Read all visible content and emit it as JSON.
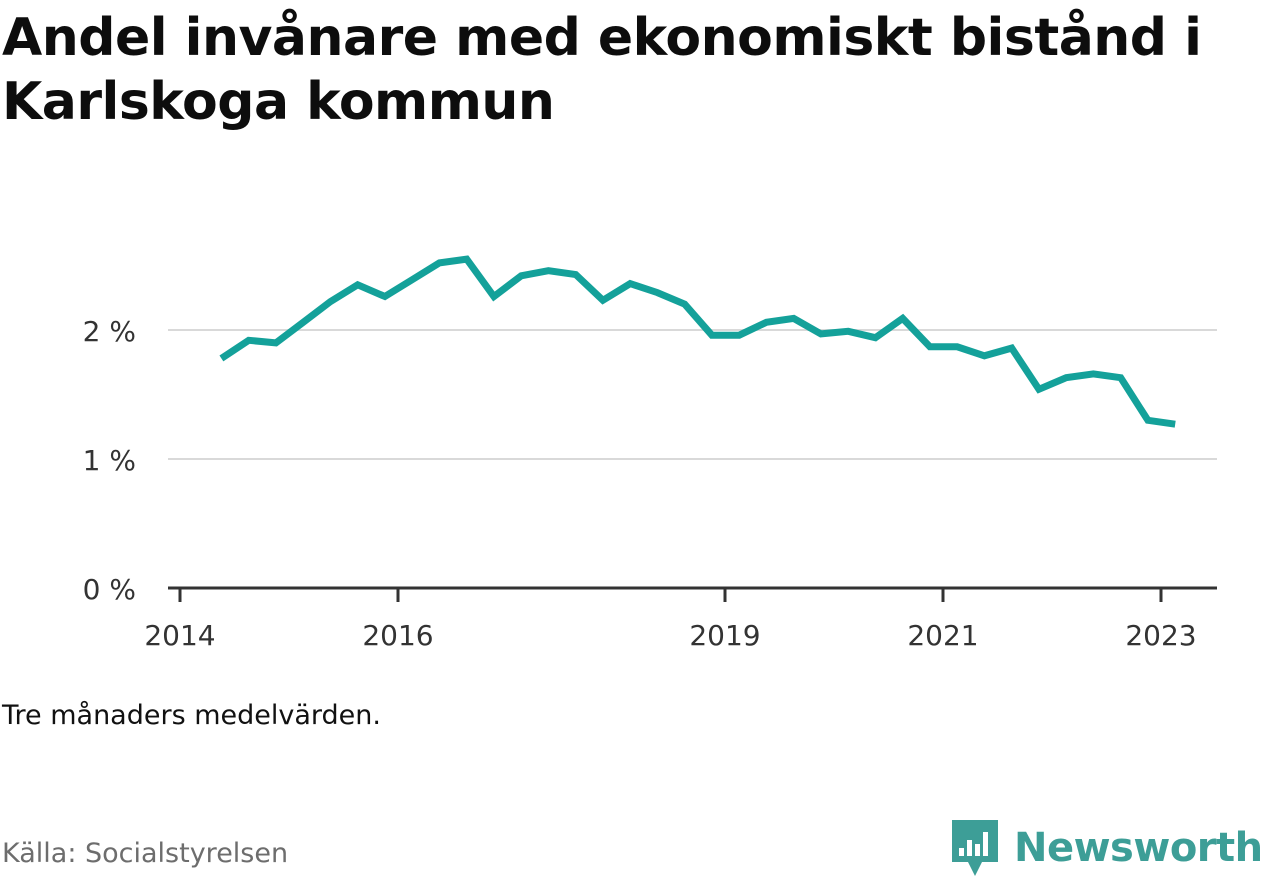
{
  "title": "Andel invånare med ekonomiskt bistånd i Karlskoga kommun",
  "note": "Tre månaders medelvärden.",
  "source": "Källa: Socialstyrelsen",
  "brand": {
    "name": "Newsworthy",
    "icon": "newsworthy-logo-icon",
    "color": "#3d9e97"
  },
  "colors": {
    "line": "#14a19a",
    "grid": "#d9d9d9",
    "axis": "#333333"
  },
  "chart_data": {
    "type": "line",
    "title": "Andel invånare med ekonomiskt bistånd i Karlskoga kommun",
    "xlabel": "",
    "ylabel": "",
    "ylim": [
      0,
      2.7
    ],
    "y_ticks": [
      0,
      1,
      2
    ],
    "y_tick_labels": [
      "0 %",
      "1 %",
      "2 %"
    ],
    "x_ticks": [
      2014,
      2016,
      2019,
      2021,
      2023
    ],
    "x_tick_labels": [
      "2014",
      "2016",
      "2019",
      "2021",
      "2023"
    ],
    "grid": true,
    "legend": "none",
    "x": [
      2014.38,
      2014.63,
      2014.88,
      2015.13,
      2015.38,
      2015.63,
      2015.88,
      2016.13,
      2016.38,
      2016.63,
      2016.88,
      2017.13,
      2017.38,
      2017.63,
      2017.88,
      2018.13,
      2018.38,
      2018.63,
      2018.88,
      2019.13,
      2019.38,
      2019.63,
      2019.88,
      2020.13,
      2020.38,
      2020.63,
      2020.88,
      2021.13,
      2021.38,
      2021.63,
      2021.88,
      2022.13,
      2022.38,
      2022.63,
      2022.88,
      2023.13
    ],
    "values": [
      1.78,
      1.92,
      1.9,
      2.06,
      2.22,
      2.35,
      2.26,
      2.39,
      2.52,
      2.55,
      2.26,
      2.42,
      2.46,
      2.43,
      2.23,
      2.36,
      2.29,
      2.2,
      1.96,
      1.96,
      2.06,
      2.09,
      1.97,
      1.99,
      1.94,
      2.09,
      1.87,
      1.87,
      1.8,
      1.86,
      1.54,
      1.63,
      1.66,
      1.63,
      1.3,
      1.27
    ],
    "series": [
      {
        "values": [
          1.78,
          1.92,
          1.9,
          2.06,
          2.22,
          2.35,
          2.26,
          2.39,
          2.52,
          2.55,
          2.26,
          2.42,
          2.46,
          2.43,
          2.23,
          2.36,
          2.29,
          2.2,
          1.96,
          1.96,
          2.06,
          2.09,
          1.97,
          1.99,
          1.94,
          2.09,
          1.87,
          1.87,
          1.8,
          1.86,
          1.54,
          1.63,
          1.66,
          1.63,
          1.3,
          1.27
        ]
      }
    ]
  }
}
